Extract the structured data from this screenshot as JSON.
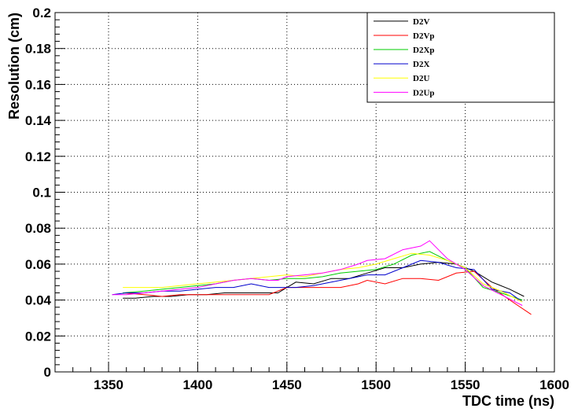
{
  "chart_data": {
    "type": "line",
    "title": "",
    "xlabel": "TDC time (ns)",
    "ylabel": "Resolution (cm)",
    "xlim": [
      1320,
      1600
    ],
    "ylim": [
      0,
      0.2
    ],
    "xticks": [
      "1350",
      "1400",
      "1450",
      "1500",
      "1550",
      "1600"
    ],
    "yticks": [
      "0",
      "0.02",
      "0.04",
      "0.06",
      "0.08",
      "0.1",
      "0.12",
      "0.14",
      "0.16",
      "0.18",
      "0.2"
    ],
    "grid": true,
    "legend_position": "top-right",
    "series": [
      {
        "name": "D2V",
        "color": "#000000",
        "x": [
          1358,
          1365,
          1375,
          1385,
          1395,
          1405,
          1415,
          1425,
          1435,
          1445,
          1455,
          1465,
          1475,
          1485,
          1495,
          1505,
          1515,
          1525,
          1535,
          1545,
          1555,
          1565,
          1575,
          1583
        ],
        "y": [
          0.041,
          0.041,
          0.042,
          0.042,
          0.043,
          0.043,
          0.044,
          0.044,
          0.044,
          0.044,
          0.05,
          0.049,
          0.052,
          0.052,
          0.055,
          0.058,
          0.058,
          0.06,
          0.061,
          0.06,
          0.056,
          0.05,
          0.046,
          0.042
        ]
      },
      {
        "name": "D2Vp",
        "color": "#ff0000",
        "x": [
          1358,
          1370,
          1380,
          1390,
          1400,
          1410,
          1420,
          1430,
          1440,
          1450,
          1460,
          1470,
          1480,
          1490,
          1495,
          1505,
          1515,
          1525,
          1535,
          1545,
          1555,
          1565,
          1575,
          1587
        ],
        "y": [
          0.044,
          0.043,
          0.042,
          0.043,
          0.043,
          0.043,
          0.043,
          0.043,
          0.043,
          0.047,
          0.047,
          0.047,
          0.047,
          0.049,
          0.051,
          0.049,
          0.052,
          0.052,
          0.051,
          0.055,
          0.056,
          0.047,
          0.04,
          0.032
        ]
      },
      {
        "name": "D2Xp",
        "color": "#00cc00",
        "x": [
          1358,
          1370,
          1380,
          1390,
          1400,
          1410,
          1420,
          1430,
          1440,
          1450,
          1460,
          1470,
          1480,
          1490,
          1500,
          1510,
          1520,
          1530,
          1540,
          1550,
          1560,
          1570,
          1582
        ],
        "y": [
          0.044,
          0.045,
          0.046,
          0.047,
          0.048,
          0.049,
          0.051,
          0.052,
          0.051,
          0.052,
          0.052,
          0.053,
          0.055,
          0.056,
          0.057,
          0.06,
          0.065,
          0.067,
          0.062,
          0.058,
          0.047,
          0.044,
          0.04
        ]
      },
      {
        "name": "D2X",
        "color": "#0000cc",
        "x": [
          1352,
          1360,
          1370,
          1380,
          1390,
          1400,
          1410,
          1420,
          1430,
          1440,
          1450,
          1455,
          1465,
          1475,
          1485,
          1495,
          1505,
          1515,
          1525,
          1535,
          1545,
          1555,
          1565,
          1575,
          1582
        ],
        "y": [
          0.043,
          0.044,
          0.044,
          0.045,
          0.045,
          0.046,
          0.047,
          0.047,
          0.049,
          0.047,
          0.047,
          0.047,
          0.048,
          0.05,
          0.052,
          0.054,
          0.054,
          0.058,
          0.062,
          0.061,
          0.058,
          0.057,
          0.046,
          0.044,
          0.039
        ]
      },
      {
        "name": "D2U",
        "color": "#ffff00",
        "x": [
          1358,
          1370,
          1380,
          1390,
          1400,
          1410,
          1420,
          1430,
          1440,
          1450,
          1460,
          1470,
          1480,
          1490,
          1500,
          1510,
          1520,
          1530,
          1540,
          1550,
          1560,
          1570,
          1582
        ],
        "y": [
          0.047,
          0.047,
          0.047,
          0.048,
          0.049,
          0.05,
          0.051,
          0.052,
          0.053,
          0.054,
          0.053,
          0.055,
          0.057,
          0.058,
          0.06,
          0.063,
          0.066,
          0.065,
          0.062,
          0.058,
          0.049,
          0.045,
          0.039
        ]
      },
      {
        "name": "D2Up",
        "color": "#ff00ff",
        "x": [
          1352,
          1360,
          1370,
          1380,
          1390,
          1400,
          1410,
          1420,
          1430,
          1440,
          1445,
          1450,
          1460,
          1470,
          1480,
          1490,
          1495,
          1505,
          1515,
          1525,
          1530,
          1540,
          1550,
          1560,
          1570,
          1582
        ],
        "y": [
          0.043,
          0.043,
          0.044,
          0.045,
          0.046,
          0.047,
          0.049,
          0.051,
          0.052,
          0.051,
          0.051,
          0.053,
          0.054,
          0.055,
          0.057,
          0.06,
          0.062,
          0.063,
          0.068,
          0.07,
          0.073,
          0.063,
          0.057,
          0.048,
          0.043,
          0.037
        ]
      }
    ]
  }
}
